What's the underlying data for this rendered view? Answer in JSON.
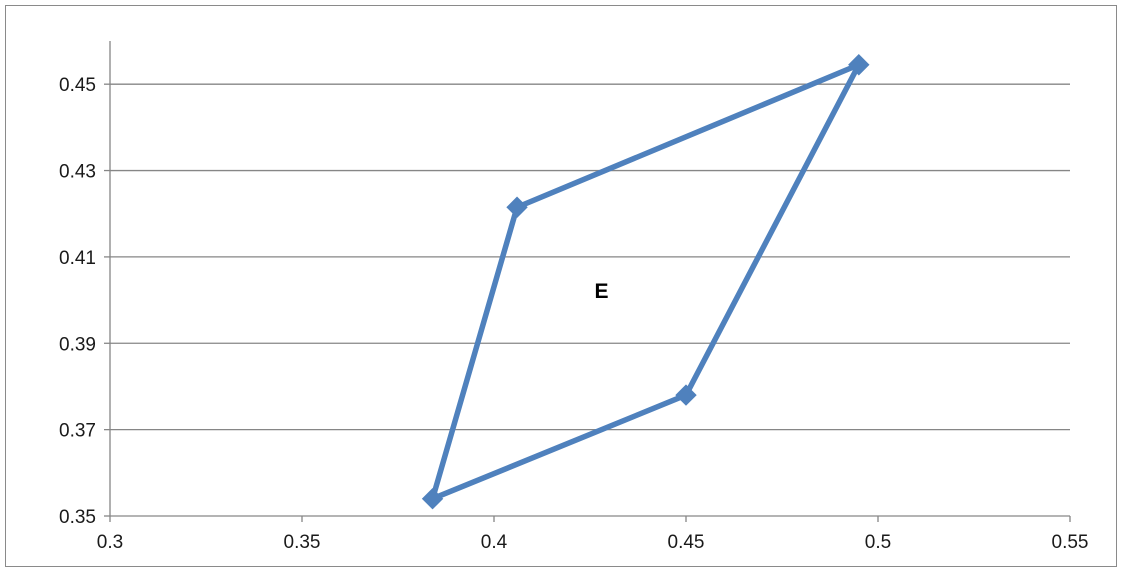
{
  "chart_data": {
    "type": "scatter",
    "title": "",
    "xlabel": "",
    "ylabel": "",
    "xlim": [
      0.3,
      0.55
    ],
    "ylim": [
      0.35,
      0.46
    ],
    "x_ticks": [
      0.3,
      0.35,
      0.4,
      0.45,
      0.5,
      0.55
    ],
    "x_tick_labels": [
      "0.3",
      "0.35",
      "0.4",
      "0.45",
      "0.5",
      "0.55"
    ],
    "y_ticks": [
      0.35,
      0.37,
      0.39,
      0.41,
      0.43,
      0.45
    ],
    "y_tick_labels": [
      "0.35",
      "0.37",
      "0.39",
      "0.41",
      "0.43",
      "0.45"
    ],
    "grid": "horizontal major gridlines",
    "legend": "none",
    "series": [
      {
        "marker": "diamond",
        "line": "straight, closed polygon",
        "color": "#4f81bd",
        "points": [
          {
            "x": 0.384,
            "y": 0.354
          },
          {
            "x": 0.406,
            "y": 0.4215
          },
          {
            "x": 0.495,
            "y": 0.4545
          },
          {
            "x": 0.45,
            "y": 0.378
          },
          {
            "x": 0.384,
            "y": 0.354
          }
        ]
      }
    ],
    "annotations": [
      {
        "text": "E",
        "x": 0.428,
        "y": 0.4005
      }
    ]
  }
}
